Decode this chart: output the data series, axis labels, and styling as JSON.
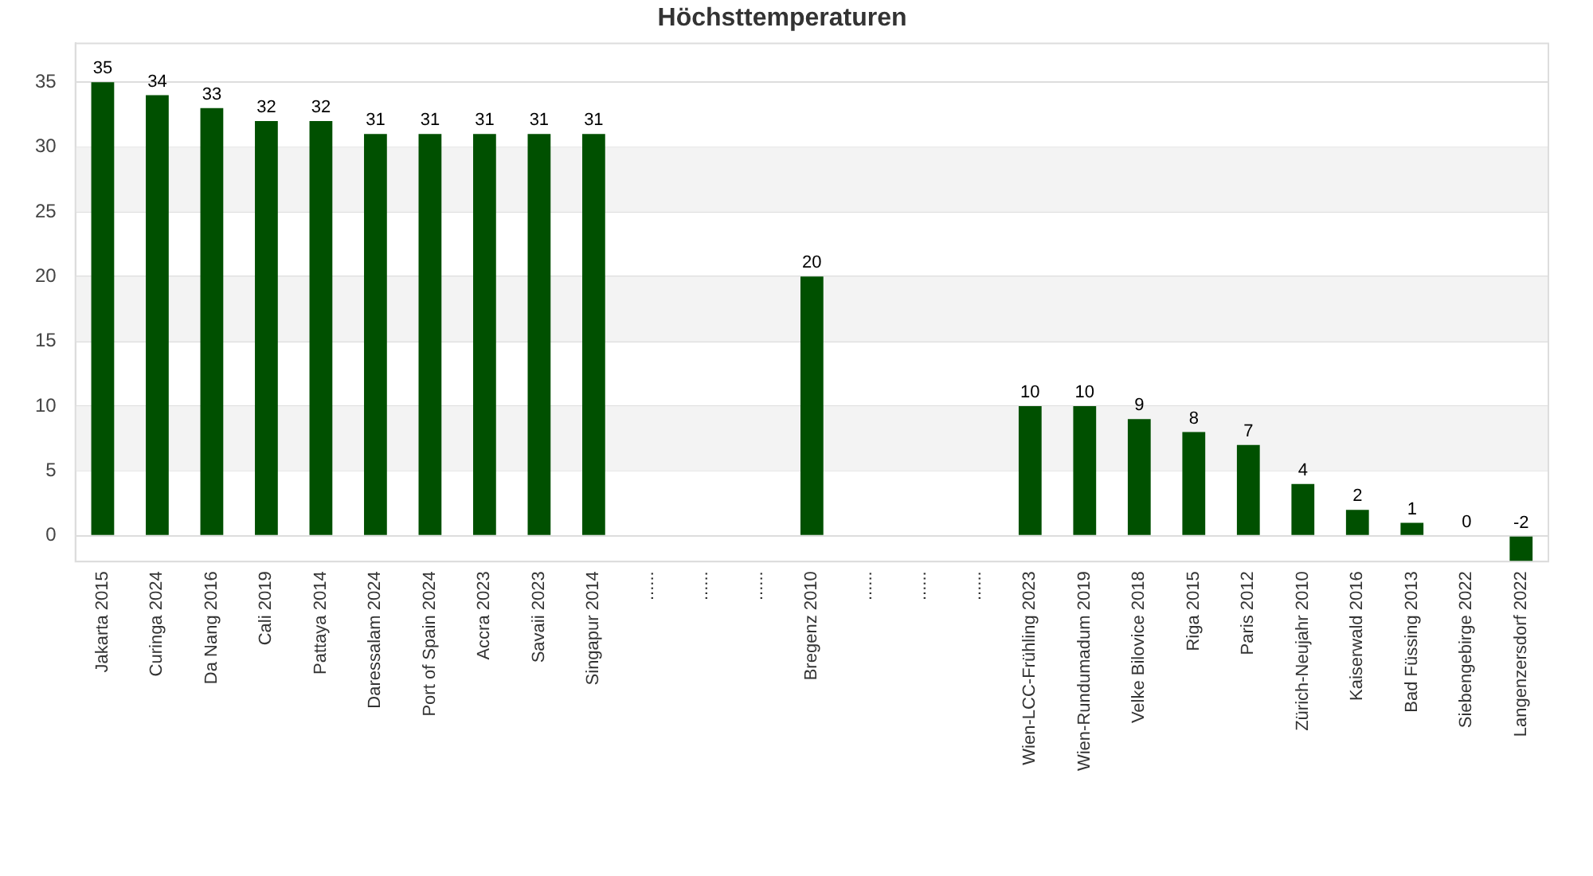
{
  "chart_data": {
    "type": "bar",
    "title": "Höchsttemperaturen",
    "categories": [
      "Jakarta 2015",
      "Curinga 2024",
      "Da Nang 2016",
      "Cali 2019",
      "Pattaya 2014",
      "Daressalam 2024",
      "Port of Spain 2024",
      "Accra 2023",
      "Savaii 2023",
      "Singapur 2014",
      "......",
      "......",
      "......",
      "Bregenz 2010",
      "......",
      "......",
      "......",
      "Wien-LCC-Frühling 2023",
      "Wien-Rundumadum 2019",
      "Velke Bilovice 2018",
      "Riga 2015",
      "Paris 2012",
      "Zürich-Neujahr 2010",
      "Kaiserwald 2016",
      "Bad Füssing 2013",
      "Siebengebirge 2022",
      "Langenzersdorf 2022"
    ],
    "values": [
      35,
      34,
      33,
      32,
      32,
      31,
      31,
      31,
      31,
      31,
      null,
      null,
      null,
      20,
      null,
      null,
      null,
      10,
      10,
      9,
      8,
      7,
      4,
      2,
      1,
      0,
      -2
    ],
    "color": "#005000",
    "ylim": [
      -2,
      38
    ],
    "yticks": [
      0,
      5,
      10,
      15,
      20,
      25,
      30,
      35
    ],
    "grid": "y",
    "data_labels": true
  }
}
